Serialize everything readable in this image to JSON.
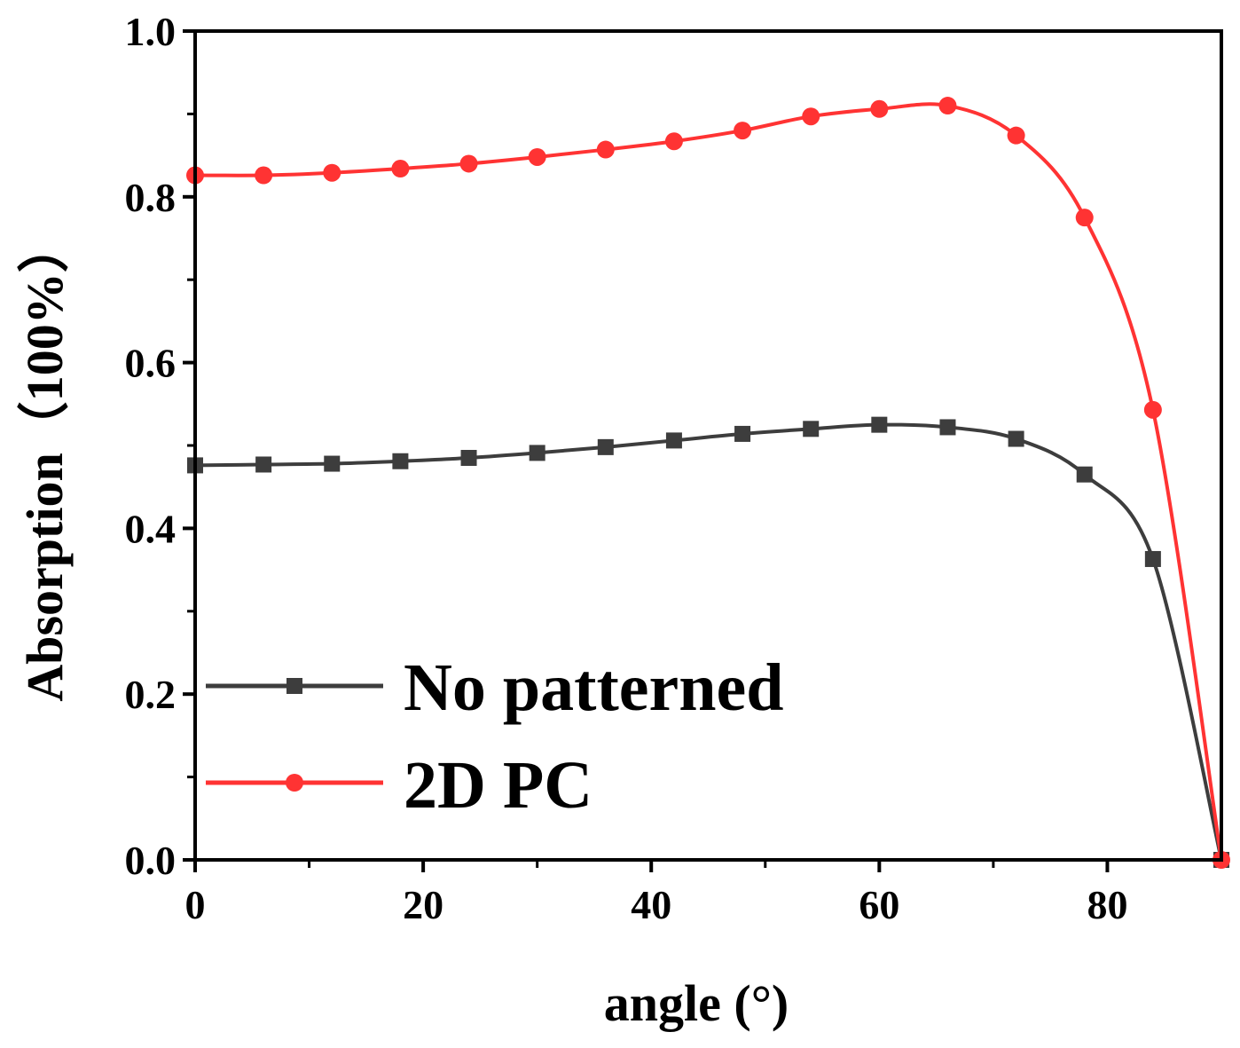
{
  "chart_data": {
    "type": "line",
    "title": "",
    "xlabel": "angle (°)",
    "ylabel": "Absorption（100%）",
    "xlim": [
      0,
      90
    ],
    "ylim": [
      0,
      1.0
    ],
    "x_ticks": [
      "0",
      "20",
      "40",
      "60",
      "80"
    ],
    "y_ticks": [
      "0.0",
      "0.2",
      "0.4",
      "0.6",
      "0.8",
      "1.0"
    ],
    "grid": false,
    "legend_position": "bottom-left",
    "x": [
      0,
      6,
      12,
      18,
      24,
      30,
      36,
      42,
      48,
      54,
      60,
      66,
      72,
      78,
      84,
      90
    ],
    "series": [
      {
        "name": "No patterned",
        "color": "#3d3d3d",
        "marker": "square",
        "values": [
          0.476,
          0.477,
          0.478,
          0.481,
          0.485,
          0.491,
          0.498,
          0.506,
          0.514,
          0.52,
          0.525,
          0.522,
          0.508,
          0.465,
          0.363,
          0.0
        ]
      },
      {
        "name": "2D PC",
        "color": "#ff3333",
        "marker": "circle",
        "values": [
          0.826,
          0.826,
          0.829,
          0.834,
          0.84,
          0.848,
          0.857,
          0.867,
          0.88,
          0.897,
          0.906,
          0.91,
          0.874,
          0.775,
          0.543,
          0.0
        ]
      }
    ]
  }
}
